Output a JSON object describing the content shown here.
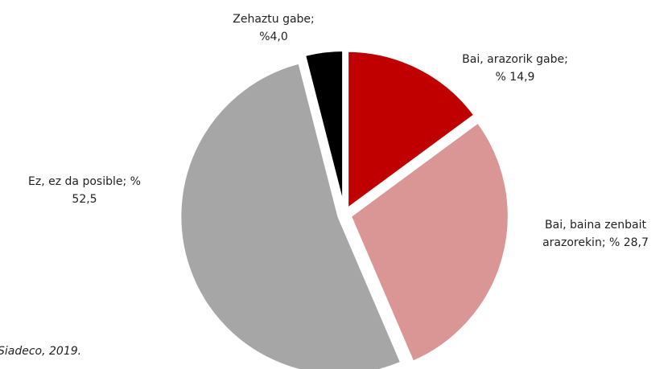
{
  "chart_data": {
    "type": "pie",
    "values": [
      14.9,
      28.7,
      52.5,
      4.0
    ],
    "value_labels": [
      [
        "Bai, arazorik gabe;",
        "% 14,9"
      ],
      [
        "Bai, baina zenbait",
        "arazorekin; % 28,7"
      ],
      [
        "Ez, ez da posible; %",
        "52,5"
      ],
      [
        "Zehaztu gabe;",
        "%4,0"
      ]
    ],
    "colors": [
      "#c00000",
      "#d99694",
      "#a6a6a6",
      "#000000"
    ],
    "note": "Siadeco, 2019."
  }
}
